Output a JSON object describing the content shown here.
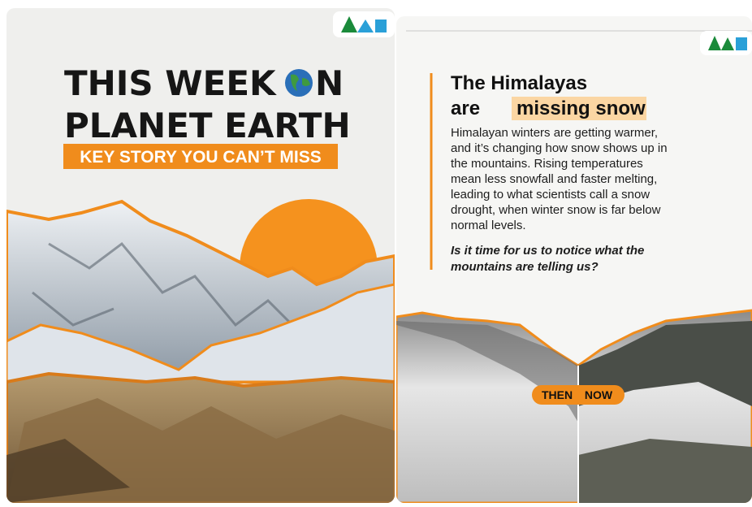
{
  "left_card": {
    "title_line1_before": "THIS WEEK",
    "title_line1_after": "N",
    "title_line2": "PLANET EARTH",
    "banner": "KEY STORY YOU CAN’T MISS"
  },
  "right_card": {
    "heading_line1": "The Himalayas",
    "heading_line2_plain": "are",
    "heading_line2_highlight": "missing snow",
    "body_lines": [
      "Himalayan winters are getting warmer,",
      "and it’s changing how snow shows up in",
      "the mountains. Rising temperatures",
      "mean less snowfall and faster melting,",
      "leading to what scientists call a snow",
      "drought, when winter snow is far below",
      "normal levels."
    ],
    "question_lines": [
      "Is it time for us to notice what the",
      "mountains are telling us?"
    ],
    "label_then": "THEN",
    "label_now": "NOW"
  }
}
